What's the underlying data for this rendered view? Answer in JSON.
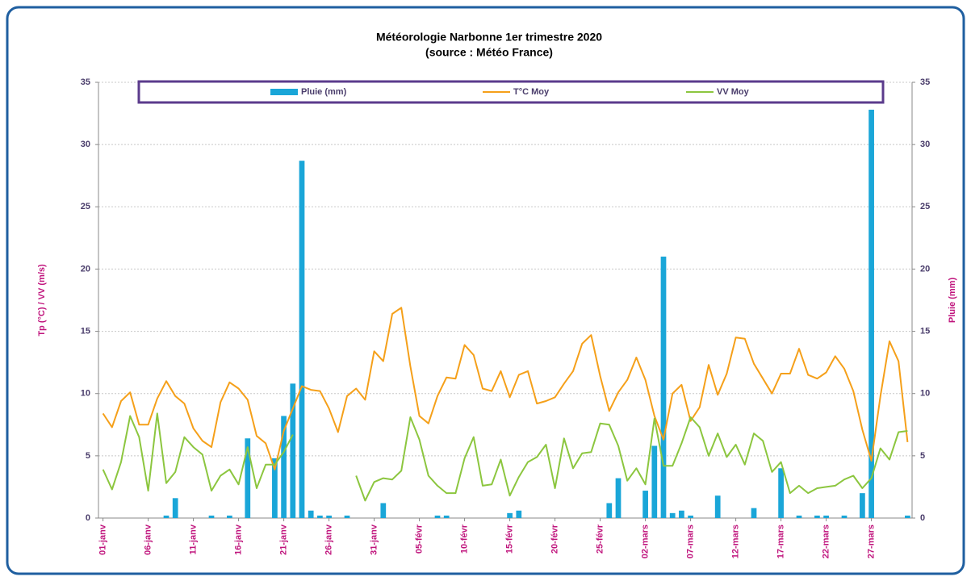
{
  "chart_data": {
    "type": "combo",
    "title": [
      "Météorologie Narbonne 1er trimestre 2020",
      "(source : Météo France)"
    ],
    "y_label": "Tp (°C) / VV (m/s)",
    "y2_label": "Pluie (mm)",
    "legend": "top",
    "grid": true,
    "ylim": [
      0,
      35
    ],
    "yticks": [
      0,
      5,
      10,
      15,
      20,
      25,
      30,
      35
    ],
    "y2lim": [
      0,
      35
    ],
    "y2ticks": [
      0,
      5,
      10,
      15,
      20,
      25,
      30,
      35
    ],
    "categories": [
      "01-janv",
      null,
      null,
      null,
      null,
      "06-janv",
      null,
      null,
      null,
      null,
      "11-janv",
      null,
      null,
      null,
      null,
      "16-janv",
      null,
      null,
      null,
      null,
      "21-janv",
      null,
      null,
      null,
      null,
      "26-janv",
      null,
      null,
      null,
      null,
      "31-janv",
      null,
      null,
      null,
      null,
      "05-févr",
      null,
      null,
      null,
      null,
      "10-févr",
      null,
      null,
      null,
      null,
      "15-févr",
      null,
      null,
      null,
      null,
      "20-févr",
      null,
      null,
      null,
      null,
      "25-févr",
      null,
      null,
      null,
      null,
      "02-mars",
      null,
      null,
      null,
      null,
      "07-mars",
      null,
      null,
      null,
      null,
      "12-mars",
      null,
      null,
      null,
      null,
      "17-mars",
      null,
      null,
      null,
      null,
      "22-mars",
      null,
      null,
      null,
      null,
      "27-mars",
      null,
      null,
      null,
      null
    ],
    "series": [
      {
        "name": "Pluie (mm)",
        "type": "bar",
        "axis": "y2",
        "color": "#1aa6d8",
        "values": [
          0,
          0,
          0,
          0,
          0,
          0,
          0,
          0.2,
          1.6,
          0,
          0,
          0,
          0.2,
          0,
          0.2,
          0,
          6.4,
          0,
          0,
          4.8,
          8.2,
          10.8,
          28.7,
          0.6,
          0.2,
          0.2,
          0,
          0.2,
          0,
          0,
          0,
          1.2,
          0,
          0,
          0,
          0,
          0,
          0.2,
          0.2,
          0,
          0,
          0,
          0,
          0,
          0,
          0.4,
          0.6,
          0,
          0,
          0,
          0,
          0,
          0,
          0,
          0,
          0,
          1.2,
          3.2,
          0,
          0,
          2.2,
          5.8,
          21,
          0.4,
          0.6,
          0.2,
          0,
          0,
          1.8,
          0,
          0,
          0,
          0.8,
          0,
          0,
          4.0,
          0,
          0.2,
          0,
          0.2,
          0.2,
          0,
          0.2,
          0,
          2.0,
          32.8,
          0,
          0,
          0,
          0.2
        ]
      },
      {
        "name": "T°C Moy",
        "type": "line",
        "color": "#f5a01a",
        "values": [
          8.4,
          7.3,
          9.4,
          10.1,
          7.5,
          7.5,
          9.6,
          11.0,
          9.8,
          9.2,
          7.2,
          6.2,
          5.7,
          9.3,
          10.9,
          10.4,
          9.5,
          6.6,
          6.0,
          3.9,
          7.0,
          8.8,
          10.6,
          10.3,
          10.2,
          8.8,
          6.9,
          9.8,
          10.4,
          9.5,
          13.4,
          12.6,
          16.4,
          16.9,
          12.2,
          8.2,
          7.6,
          9.8,
          11.3,
          11.2,
          13.9,
          13.1,
          10.4,
          10.2,
          11.8,
          9.7,
          11.5,
          11.8,
          9.2,
          9.4,
          9.7,
          10.8,
          11.8,
          14.0,
          14.7,
          11.4,
          8.6,
          10.1,
          11.1,
          12.9,
          11.1,
          8.2,
          6.3,
          10.0,
          10.7,
          7.8,
          8.9,
          12.3,
          9.9,
          11.6,
          14.5,
          14.4,
          12.4,
          11.2,
          10.0,
          11.6,
          11.6,
          13.6,
          11.5,
          11.2,
          11.7,
          13.0,
          12.0,
          10.2,
          7.1,
          4.6,
          9.8,
          14.2,
          12.6,
          6.1
        ]
      },
      {
        "name": "VV Moy",
        "type": "line",
        "color": "#8cc63f",
        "values": [
          3.9,
          2.3,
          4.5,
          8.2,
          6.5,
          2.2,
          8.4,
          2.8,
          3.7,
          6.5,
          5.7,
          5.1,
          2.2,
          3.4,
          3.9,
          2.7,
          5.7,
          2.4,
          4.3,
          4.3,
          5.3,
          6.7,
          null,
          null,
          null,
          null,
          null,
          null,
          3.4,
          1.4,
          2.9,
          3.2,
          3.1,
          3.8,
          8.1,
          6.3,
          3.4,
          2.6,
          2.0,
          2.0,
          4.8,
          6.5,
          2.6,
          2.7,
          4.7,
          1.8,
          3.3,
          4.5,
          4.9,
          5.9,
          2.4,
          6.4,
          4.0,
          5.2,
          5.3,
          7.6,
          7.5,
          5.8,
          3.0,
          4.0,
          2.7,
          8.0,
          4.2,
          4.2,
          6.0,
          8.1,
          7.3,
          5.0,
          6.8,
          4.9,
          5.9,
          4.3,
          6.8,
          6.2,
          3.7,
          4.5,
          2.0,
          2.6,
          2.0,
          2.4,
          2.5,
          2.6,
          3.1,
          3.4,
          2.4,
          3.2,
          5.6,
          4.7,
          6.9,
          7.0
        ]
      }
    ]
  }
}
